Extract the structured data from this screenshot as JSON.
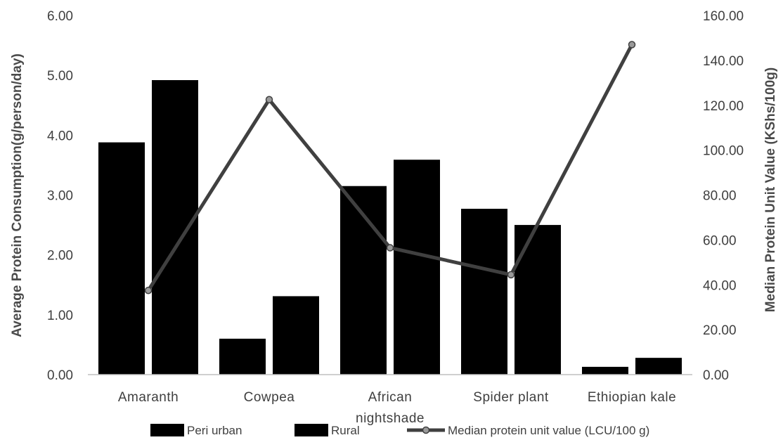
{
  "chart_data": {
    "type": "bar",
    "categories": [
      "Amaranth",
      "Cowpea",
      "African nightshade",
      "Spider plant",
      "Ethiopian kale"
    ],
    "category_lines": [
      [
        "Amaranth"
      ],
      [
        "Cowpea"
      ],
      [
        "African",
        "nightshade"
      ],
      [
        "Spider plant"
      ],
      [
        "Ethiopian kale"
      ]
    ],
    "series": [
      {
        "name": "Peri urban",
        "type": "bar",
        "axis": "left",
        "color": "#000000",
        "values": [
          3.88,
          0.6,
          3.15,
          2.77,
          0.13
        ]
      },
      {
        "name": "Rural",
        "type": "bar",
        "axis": "left",
        "color": "#000000",
        "values": [
          4.92,
          1.31,
          3.59,
          2.5,
          0.28
        ]
      },
      {
        "name": "Median protein unit value (LCU/100 g)",
        "type": "line",
        "axis": "right",
        "color": "#404040",
        "marker_color": "#9a9a9a",
        "values": [
          37.5,
          122.5,
          56.5,
          44.5,
          147.0
        ]
      }
    ],
    "ylabel": "Average Protein Consumption(g/person/day)",
    "y2label": "Median Protein Unit Value (KShs/100g)",
    "ylim": [
      0,
      6
    ],
    "y2lim": [
      0,
      160
    ],
    "yticks": [
      "0.00",
      "1.00",
      "2.00",
      "3.00",
      "4.00",
      "5.00",
      "6.00"
    ],
    "y2ticks": [
      "0.00",
      "20.00",
      "40.00",
      "60.00",
      "80.00",
      "100.00",
      "120.00",
      "140.00",
      "160.00"
    ],
    "grid": false,
    "legend_position": "bottom"
  }
}
